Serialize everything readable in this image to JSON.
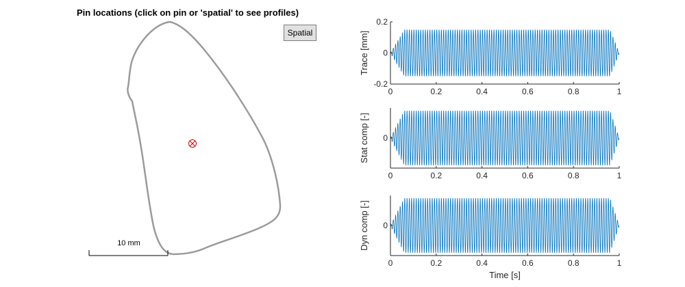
{
  "left_panel": {
    "title": "Pin locations (click on pin or 'spatial' to see profiles)",
    "spatial_button_label": "Spatial",
    "scale_bar_label": "10 mm",
    "outline_color": "#9b9b9b",
    "pin_color": "#d40000"
  },
  "chart_data": [
    {
      "type": "line",
      "ylabel": "Trace [mm]",
      "xlabel": "",
      "xlim": [
        0,
        1
      ],
      "ylim": [
        -0.2,
        0.2
      ],
      "xticks": [
        "0",
        "0.2",
        "0.4",
        "0.6",
        "0.8",
        "1"
      ],
      "yticks": [
        "-0.2",
        "0",
        "0.2"
      ],
      "signal": {
        "amplitude": 0.15,
        "cycles": 100,
        "ramp_end": 0.06,
        "ramp_start_down": 0.96
      },
      "color": "#0072bd"
    },
    {
      "type": "line",
      "ylabel": "Stat comp [-]",
      "xlabel": "",
      "xlim": [
        0,
        1
      ],
      "ylim": [
        -1.1,
        1.1
      ],
      "xticks": [
        "0",
        "0.2",
        "0.4",
        "0.6",
        "0.8",
        "1"
      ],
      "yticks": [
        "0"
      ],
      "signal": {
        "amplitude": 1.0,
        "cycles": 100,
        "ramp_end": 0.06,
        "ramp_start_down": 0.96
      },
      "color": "#0072bd"
    },
    {
      "type": "line",
      "ylabel": "Dyn comp [-]",
      "xlabel": "Time [s]",
      "xlim": [
        0,
        1
      ],
      "ylim": [
        -1.1,
        1.1
      ],
      "xticks": [
        "0",
        "0.2",
        "0.4",
        "0.6",
        "0.8",
        "1"
      ],
      "yticks": [
        "0"
      ],
      "signal": {
        "amplitude": 1.0,
        "cycles": 100,
        "ramp_end": 0.06,
        "ramp_start_down": 0.96
      },
      "color": "#0072bd"
    }
  ]
}
